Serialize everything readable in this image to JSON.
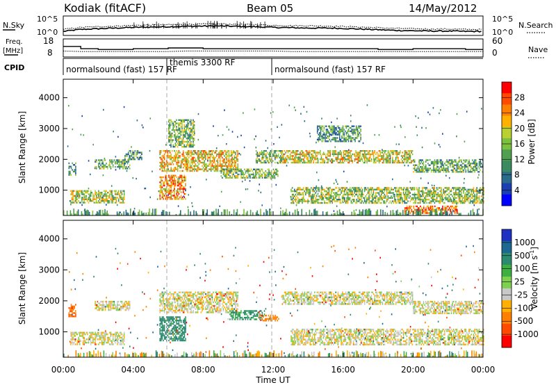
{
  "header": {
    "radar": "Kodiak (fitACF)",
    "beam": "Beam 05",
    "date": "14/May/2012"
  },
  "side_labels": {
    "nsky": "N.Sky",
    "freq_line1": "Freq.",
    "freq_line2": "[MHz]",
    "cpid": "CPID",
    "nsearch": "N.Search",
    "nave": "Nave"
  },
  "chart_data": [
    {
      "type": "line",
      "panel": "noise",
      "ytick_labels_left": [
        "10^5",
        "10^0"
      ],
      "ytick_labels_right": [
        "10^5",
        "10^0"
      ],
      "series": [
        {
          "name": "N.Sky",
          "style": "solid",
          "x_hours": [
            0,
            1,
            2,
            3,
            4,
            5,
            6,
            7,
            8,
            9,
            10,
            11,
            12,
            13,
            14,
            15,
            16,
            17,
            18,
            19,
            20,
            21,
            22,
            23,
            24
          ],
          "values_log10": [
            0.8,
            1.4,
            1.6,
            1.8,
            2.0,
            2.1,
            2.2,
            2.3,
            2.4,
            2.4,
            2.3,
            2.2,
            2.0,
            1.9,
            1.8,
            1.8,
            1.7,
            1.5,
            1.3,
            1.1,
            1.0,
            0.9,
            0.9,
            0.8,
            0.8
          ]
        },
        {
          "name": "N.Search",
          "style": "dotted",
          "x_hours": [
            0,
            1,
            2,
            3,
            4,
            5,
            6,
            7,
            8,
            9,
            10,
            11,
            12,
            13,
            14,
            15,
            16,
            17,
            18,
            19,
            20,
            21,
            22,
            23,
            24
          ],
          "values_log10": [
            1.4,
            2.0,
            2.2,
            2.4,
            2.6,
            2.7,
            2.8,
            2.9,
            3.0,
            3.0,
            2.9,
            2.8,
            2.6,
            2.5,
            2.5,
            2.4,
            2.3,
            2.1,
            1.9,
            1.7,
            1.6,
            1.5,
            1.5,
            1.4,
            1.4
          ]
        }
      ]
    },
    {
      "type": "line",
      "panel": "frequency",
      "ytick_labels_left": [
        "18",
        "8"
      ],
      "ytick_labels_right": [
        "60",
        "0"
      ],
      "series": [
        {
          "name": "Freq.",
          "style": "solid",
          "step": true,
          "x_hours": [
            0,
            1,
            2,
            3,
            4,
            5,
            6,
            7,
            8,
            9,
            10,
            11,
            12,
            13,
            14,
            15,
            16,
            17,
            18,
            19,
            20,
            21,
            22,
            23,
            24
          ],
          "values": [
            14,
            12.5,
            12,
            12,
            12.5,
            12.5,
            13,
            13,
            12.5,
            12.5,
            12.5,
            12.5,
            12.5,
            12.5,
            12.5,
            12.5,
            12.5,
            12.5,
            12,
            12,
            12.5,
            12.5,
            12.5,
            12,
            12
          ]
        },
        {
          "name": "Nave",
          "style": "dotted",
          "x_hours": [
            0,
            1,
            2,
            3,
            4,
            5,
            6,
            7,
            8,
            9,
            10,
            11,
            12,
            13,
            14,
            15,
            16,
            17,
            18,
            19,
            20,
            21,
            22,
            23,
            24
          ],
          "values": [
            18,
            16,
            16,
            16,
            16,
            16,
            16,
            18,
            18,
            18,
            18,
            18,
            18,
            16,
            16,
            16,
            16,
            16,
            16,
            16,
            16,
            16,
            16,
            16,
            16
          ]
        }
      ]
    },
    {
      "type": "table",
      "panel": "cpid",
      "segments": [
        {
          "label": "normalsound (fast) 157 RF",
          "start_hour": 0.0,
          "end_hour": 6.0
        },
        {
          "label": "themis 3300 RF",
          "start_hour": 6.0,
          "end_hour": 12.0
        },
        {
          "label": "normalsound (fast) 157 RF",
          "start_hour": 12.0,
          "end_hour": 24.0
        }
      ]
    },
    {
      "type": "heatmap",
      "panel": "power",
      "ylabel": "Slant Range [km]",
      "yticks": [
        "1000",
        "2000",
        "3000",
        "4000"
      ],
      "ylim": [
        180,
        4600
      ],
      "xlim_hours": [
        0,
        24
      ],
      "colorbar_label": "Power [dB]",
      "colorbar_ticks": [
        "4",
        "8",
        "12",
        "16",
        "20",
        "24",
        "28"
      ],
      "colorbar_colors": [
        "#0000ff",
        "#1a3fb0",
        "#2a6a8a",
        "#3b8a60",
        "#50a050",
        "#7cc040",
        "#b8d030",
        "#ffb000",
        "#ff8000",
        "#ff4a00",
        "#ff0000"
      ],
      "echo_bands": [
        {
          "start_hour": 0.3,
          "end_hour": 0.7,
          "range_min": 1500,
          "range_max": 1900,
          "level": 0.3
        },
        {
          "start_hour": 0.4,
          "end_hour": 3.5,
          "range_min": 600,
          "range_max": 1000,
          "level": 0.55
        },
        {
          "start_hour": 1.8,
          "end_hour": 3.8,
          "range_min": 1700,
          "range_max": 2000,
          "level": 0.4
        },
        {
          "start_hour": 3.5,
          "end_hour": 4.5,
          "range_min": 2000,
          "range_max": 2300,
          "level": 0.35
        },
        {
          "start_hour": 5.5,
          "end_hour": 7.0,
          "range_min": 700,
          "range_max": 1500,
          "level": 0.75
        },
        {
          "start_hour": 5.5,
          "end_hour": 10.0,
          "range_min": 1600,
          "range_max": 2300,
          "level": 0.65
        },
        {
          "start_hour": 6.0,
          "end_hour": 7.5,
          "range_min": 2400,
          "range_max": 3300,
          "level": 0.45
        },
        {
          "start_hour": 9.0,
          "end_hour": 12.3,
          "range_min": 1400,
          "range_max": 1700,
          "level": 0.45
        },
        {
          "start_hour": 11.0,
          "end_hour": 12.5,
          "range_min": 1900,
          "range_max": 2300,
          "level": 0.45
        },
        {
          "start_hour": 12.5,
          "end_hour": 20.0,
          "range_min": 1900,
          "range_max": 2300,
          "level": 0.6
        },
        {
          "start_hour": 14.5,
          "end_hour": 17.0,
          "range_min": 2600,
          "range_max": 3100,
          "level": 0.35
        },
        {
          "start_hour": 13.0,
          "end_hour": 24.0,
          "range_min": 600,
          "range_max": 1100,
          "level": 0.5
        },
        {
          "start_hour": 20.0,
          "end_hour": 24.0,
          "range_min": 1600,
          "range_max": 2000,
          "level": 0.4
        },
        {
          "start_hour": 19.5,
          "end_hour": 22.5,
          "range_min": 250,
          "range_max": 500,
          "level": 0.85
        }
      ]
    },
    {
      "type": "heatmap",
      "panel": "velocity",
      "ylabel": "Slant Range [km]",
      "yticks": [
        "1000",
        "2000",
        "3000",
        "4000"
      ],
      "ylim": [
        180,
        4600
      ],
      "xlabel": "Time UT",
      "xtick_labels": [
        "00:00",
        "04:00",
        "08:00",
        "12:00",
        "16:00",
        "20:00",
        "00:00"
      ],
      "xtick_hours": [
        0,
        4,
        8,
        12,
        16,
        20,
        24
      ],
      "xlim_hours": [
        0,
        24
      ],
      "colorbar_label": "Velocity [m s",
      "colorbar_unit_exp": "-1",
      "colorbar_ticks": [
        "1000",
        "500",
        "100",
        "25",
        "-25",
        "-100",
        "-500",
        "-1000"
      ],
      "colorbar_colors": [
        "#2030c0",
        "#1c6890",
        "#2b8a70",
        "#3cb040",
        "#80d050",
        "#c8c8c8",
        "#ffb000",
        "#ff8000",
        "#ff4a00",
        "#ff0000"
      ],
      "echo_bands": [
        {
          "start_hour": 0.3,
          "end_hour": 0.7,
          "range_min": 1500,
          "range_max": 1900,
          "velocity": -300
        },
        {
          "start_hour": 0.4,
          "end_hour": 3.5,
          "range_min": 600,
          "range_max": 1000,
          "velocity": 0
        },
        {
          "start_hour": 1.8,
          "end_hour": 3.8,
          "range_min": 1700,
          "range_max": 2000,
          "velocity": 0
        },
        {
          "start_hour": 5.5,
          "end_hour": 7.0,
          "range_min": 700,
          "range_max": 1500,
          "velocity": 150
        },
        {
          "start_hour": 5.5,
          "end_hour": 10.0,
          "range_min": 1600,
          "range_max": 2300,
          "velocity": 0
        },
        {
          "start_hour": 9.5,
          "end_hour": 11.5,
          "range_min": 1400,
          "range_max": 1700,
          "velocity": 120
        },
        {
          "start_hour": 11.2,
          "end_hour": 12.3,
          "range_min": 1350,
          "range_max": 1550,
          "velocity": -200
        },
        {
          "start_hour": 12.5,
          "end_hour": 20.0,
          "range_min": 1900,
          "range_max": 2300,
          "velocity": 0
        },
        {
          "start_hour": 13.0,
          "end_hour": 24.0,
          "range_min": 600,
          "range_max": 1100,
          "velocity": 0
        },
        {
          "start_hour": 20.0,
          "end_hour": 24.0,
          "range_min": 1600,
          "range_max": 2000,
          "velocity": 0
        }
      ]
    }
  ]
}
